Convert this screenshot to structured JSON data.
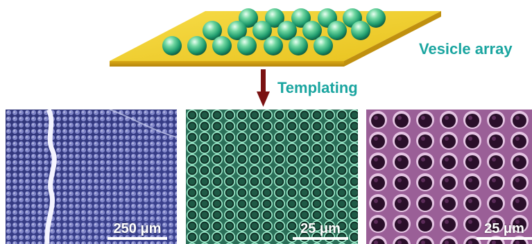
{
  "labels": {
    "vesicle_array": "Vesicle array",
    "templating": "Templating"
  },
  "colors": {
    "text_accent": "#1aa5a0",
    "slab_top": "#f2cf2a",
    "slab_side": "#c99a12",
    "sphere": "#3cc08a",
    "arrow": "#7a1212",
    "panel_left": "#5a5fa6",
    "panel_middle": "#3a8a6e",
    "panel_right": "#8a4f86"
  },
  "panels": [
    {
      "scale_label": "250 μm",
      "color": "#5a5fa6"
    },
    {
      "scale_label": "25 μm",
      "color": "#3a8a6e"
    },
    {
      "scale_label": "25 μm",
      "color": "#8a4f86"
    }
  ]
}
